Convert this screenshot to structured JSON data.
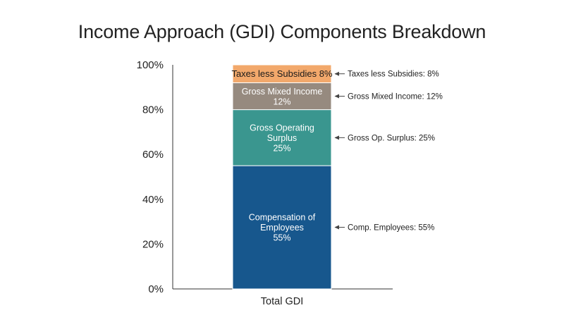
{
  "chart_data": {
    "type": "bar",
    "stacked": true,
    "title": "Income Approach (GDI) Components Breakdown",
    "categories": [
      "Total GDI"
    ],
    "ylim": [
      0,
      100
    ],
    "yticks": [
      "0%",
      "20%",
      "40%",
      "60%",
      "80%",
      "100%"
    ],
    "grid": false,
    "series": [
      {
        "name": "Compensation of Employees",
        "value": 55,
        "label_lines": [
          "Compensation of",
          "Employees",
          "55%"
        ],
        "annotation": "Comp. Employees: 55%",
        "color": "#17578d",
        "label_dark": false
      },
      {
        "name": "Gross Operating Surplus",
        "value": 25,
        "label_lines": [
          "Gross Operating",
          "Surplus",
          "25%"
        ],
        "annotation": "Gross Op. Surplus: 25%",
        "color": "#3a968f",
        "label_dark": false
      },
      {
        "name": "Gross Mixed Income",
        "value": 12,
        "label_lines": [
          "Gross Mixed Income",
          "12%"
        ],
        "annotation": "Gross Mixed Income: 12%",
        "color": "#968a7f",
        "label_dark": false
      },
      {
        "name": "Taxes less Subsidies",
        "value": 8,
        "label_lines": [
          "Taxes less Subsidies 8%"
        ],
        "annotation": "Taxes less Subsidies: 8%",
        "color": "#f2a86b",
        "label_dark": true
      }
    ]
  }
}
